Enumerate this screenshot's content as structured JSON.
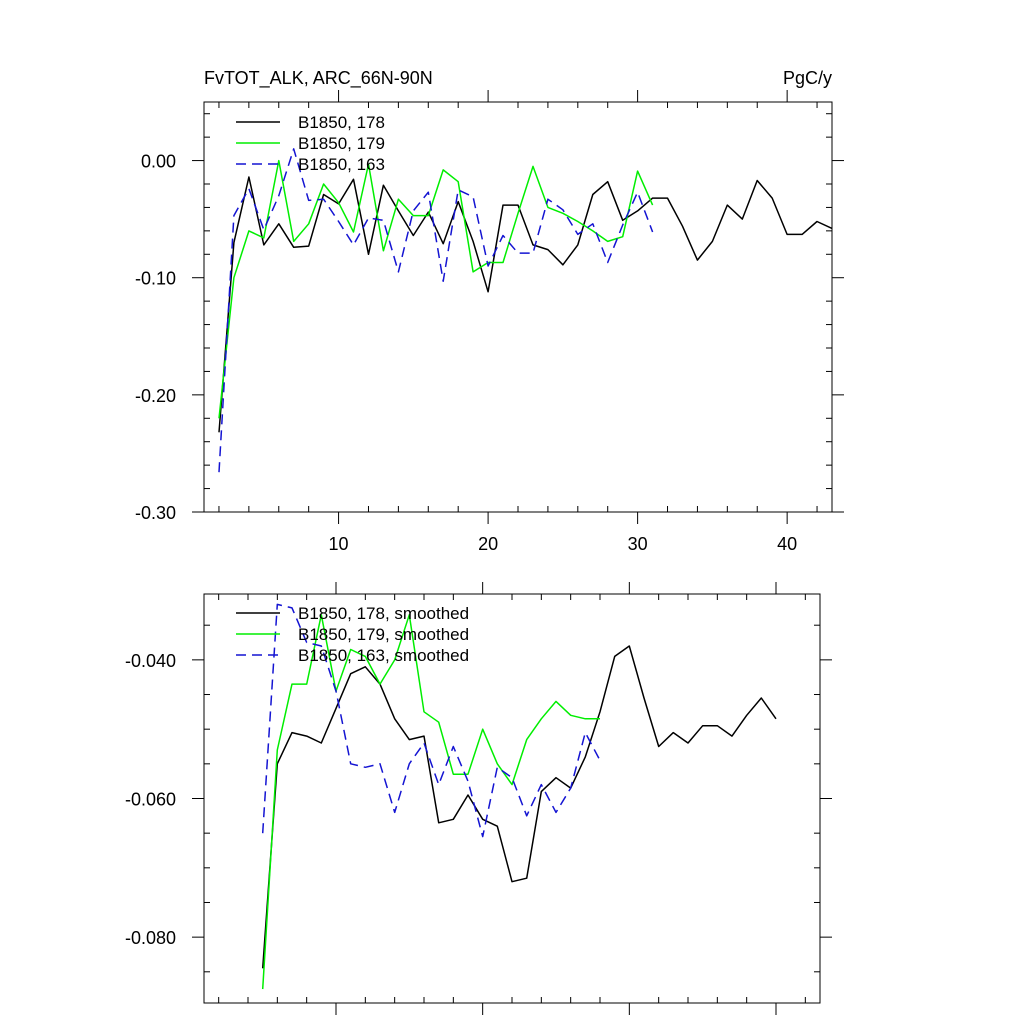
{
  "chart_data": [
    {
      "type": "line",
      "title_left": "FvTOT_ALK, ARC_66N-90N",
      "title_right": "PgC/y",
      "xlim": [
        1,
        43
      ],
      "ylim": [
        -0.3,
        0.05
      ],
      "x_ticks": [
        10,
        20,
        30,
        40
      ],
      "x_tick_labels": [
        "10",
        "20",
        "30",
        "40"
      ],
      "y_ticks": [
        0.0,
        -0.1,
        -0.2,
        -0.3
      ],
      "y_tick_labels": [
        "0.00",
        "-0.10",
        "-0.20",
        "-0.30"
      ],
      "series": [
        {
          "name": "B1850, 178",
          "color": "#000000",
          "dash": "solid",
          "x": [
            2,
            3,
            4,
            5,
            6,
            7,
            8,
            9,
            10,
            11,
            12,
            13,
            14,
            15,
            16,
            17,
            18,
            19,
            20,
            21,
            22,
            23,
            24,
            25,
            26,
            27,
            28,
            29,
            30,
            31,
            32,
            33,
            34,
            35,
            36,
            37,
            38,
            39,
            40,
            41,
            42,
            43
          ],
          "y": [
            -0.232,
            -0.07,
            -0.014,
            -0.072,
            -0.054,
            -0.074,
            -0.073,
            -0.029,
            -0.037,
            -0.016,
            -0.08,
            -0.021,
            -0.043,
            -0.064,
            -0.044,
            -0.071,
            -0.035,
            -0.069,
            -0.112,
            -0.038,
            -0.038,
            -0.072,
            -0.076,
            -0.089,
            -0.072,
            -0.029,
            -0.018,
            -0.051,
            -0.043,
            -0.032,
            -0.032,
            -0.056,
            -0.085,
            -0.069,
            -0.038,
            -0.05,
            -0.017,
            -0.032,
            -0.063,
            -0.063,
            -0.052,
            -0.058
          ]
        },
        {
          "name": "B1850, 179",
          "color": "#00ee00",
          "dash": "solid",
          "x": [
            2,
            3,
            4,
            5,
            6,
            7,
            8,
            9,
            10,
            11,
            12,
            13,
            14,
            15,
            16,
            17,
            18,
            19,
            20,
            21,
            22,
            23,
            24,
            25,
            26,
            27,
            28,
            29,
            30,
            31
          ],
          "y": [
            -0.22,
            -0.1,
            -0.06,
            -0.066,
            0.0,
            -0.069,
            -0.054,
            -0.02,
            -0.036,
            -0.061,
            -0.003,
            -0.077,
            -0.033,
            -0.047,
            -0.047,
            -0.008,
            -0.018,
            -0.095,
            -0.087,
            -0.087,
            -0.045,
            -0.005,
            -0.04,
            -0.045,
            -0.052,
            -0.06,
            -0.069,
            -0.065,
            -0.009,
            -0.038
          ]
        },
        {
          "name": "B1850, 163",
          "color": "#1414d2",
          "dash": "dashed",
          "x": [
            2,
            3,
            4,
            5,
            6,
            7,
            8,
            9,
            10,
            11,
            12,
            13,
            14,
            15,
            16,
            17,
            18,
            19,
            20,
            21,
            22,
            23,
            24,
            25,
            26,
            27,
            28,
            29,
            30,
            31
          ],
          "y": [
            -0.266,
            -0.047,
            -0.024,
            -0.059,
            -0.03,
            0.01,
            -0.034,
            -0.033,
            -0.052,
            -0.072,
            -0.049,
            -0.051,
            -0.095,
            -0.043,
            -0.027,
            -0.103,
            -0.025,
            -0.031,
            -0.09,
            -0.064,
            -0.079,
            -0.079,
            -0.033,
            -0.042,
            -0.063,
            -0.054,
            -0.087,
            -0.055,
            -0.027,
            -0.061
          ]
        }
      ]
    },
    {
      "type": "line",
      "xlim": [
        1,
        43
      ],
      "ylim": [
        -0.0895,
        -0.0305
      ],
      "x_ticks": [
        10,
        20,
        30,
        40
      ],
      "y_ticks": [
        -0.04,
        -0.06,
        -0.08
      ],
      "y_tick_labels": [
        "-0.040",
        "-0.060",
        "-0.080"
      ],
      "series": [
        {
          "name": "B1850, 178, smoothed",
          "color": "#000000",
          "dash": "solid",
          "x": [
            5,
            6,
            7,
            8,
            9,
            10,
            11,
            12,
            13,
            14,
            15,
            16,
            17,
            18,
            19,
            20,
            21,
            22,
            23,
            24,
            25,
            26,
            27,
            28,
            29,
            30,
            31,
            32,
            33,
            34,
            35,
            36,
            37,
            38,
            39,
            40
          ],
          "y": [
            -0.0845,
            -0.055,
            -0.0505,
            -0.051,
            -0.052,
            -0.047,
            -0.042,
            -0.041,
            -0.0435,
            -0.0485,
            -0.0515,
            -0.051,
            -0.0635,
            -0.063,
            -0.0595,
            -0.063,
            -0.064,
            -0.072,
            -0.0715,
            -0.059,
            -0.057,
            -0.0585,
            -0.054,
            -0.0475,
            -0.0395,
            -0.038,
            -0.0455,
            -0.0525,
            -0.0505,
            -0.052,
            -0.0495,
            -0.0495,
            -0.051,
            -0.048,
            -0.0455,
            -0.0485
          ]
        },
        {
          "name": "B1850, 179, smoothed",
          "color": "#00ee00",
          "dash": "solid",
          "x": [
            5,
            6,
            7,
            8,
            9,
            10,
            11,
            12,
            13,
            14,
            15,
            16,
            17,
            18,
            19,
            20,
            21,
            22,
            23,
            24,
            25,
            26,
            27,
            28
          ],
          "y": [
            -0.0875,
            -0.053,
            -0.0435,
            -0.0435,
            -0.0335,
            -0.0445,
            -0.0385,
            -0.0395,
            -0.0435,
            -0.04,
            -0.0335,
            -0.0475,
            -0.049,
            -0.0565,
            -0.0565,
            -0.05,
            -0.055,
            -0.058,
            -0.0515,
            -0.0485,
            -0.046,
            -0.048,
            -0.0485,
            -0.0485
          ]
        },
        {
          "name": "B1850, 163, smoothed",
          "color": "#1414d2",
          "dash": "dashed",
          "x": [
            5,
            6,
            7,
            8,
            9,
            10,
            11,
            12,
            13,
            14,
            15,
            16,
            17,
            18,
            19,
            20,
            21,
            22,
            23,
            24,
            25,
            26,
            27,
            28
          ],
          "y": [
            -0.065,
            -0.032,
            -0.0325,
            -0.0375,
            -0.038,
            -0.0445,
            -0.055,
            -0.0555,
            -0.055,
            -0.062,
            -0.055,
            -0.052,
            -0.058,
            -0.0525,
            -0.0575,
            -0.0655,
            -0.0555,
            -0.057,
            -0.0625,
            -0.058,
            -0.062,
            -0.0585,
            -0.0505,
            -0.0545
          ]
        }
      ]
    }
  ]
}
